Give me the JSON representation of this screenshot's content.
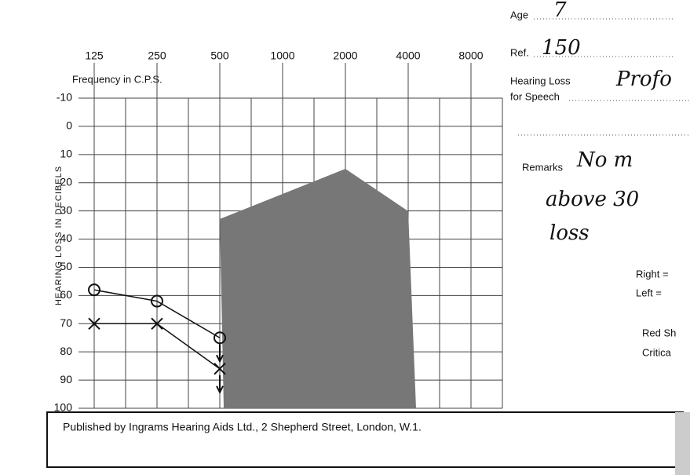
{
  "chart_data": {
    "type": "line",
    "x_label": "Frequency in C.P.S.",
    "y_label": "HEARING LOSS IN DECIBELS",
    "categories": [
      "125",
      "250",
      "500",
      "1000",
      "2000",
      "4000",
      "8000"
    ],
    "series": [
      {
        "name": "Right",
        "color": "#111111",
        "marker": "circle",
        "values": [
          58,
          62,
          75,
          null,
          null,
          null,
          null
        ]
      },
      {
        "name": "Left",
        "color": "#111111",
        "marker": "cross",
        "values": [
          70,
          70,
          86,
          null,
          null,
          null,
          null
        ]
      }
    ],
    "ylim": [
      -10,
      100
    ],
    "yticks": [
      -10,
      0,
      10,
      20,
      30,
      40,
      50,
      60,
      70,
      80,
      90,
      100
    ],
    "inverted": true,
    "grid": true
  },
  "form": {
    "age": "Age",
    "age_value": "7",
    "ref": "Ref.",
    "ref_value": "150",
    "hearing_loss": "Hearing Loss",
    "for_speech": "for Speech",
    "hearing_loss_value": "Profo",
    "remarks": "Remarks",
    "remarks_values": [
      "No m",
      "above 30",
      "loss"
    ],
    "legend": [
      "Right =",
      "Left =",
      "Red Sh",
      "Critica"
    ]
  },
  "footer": "Published by Ingrams Hearing Aids Ltd., 2 Shepherd Street, London, W.1."
}
